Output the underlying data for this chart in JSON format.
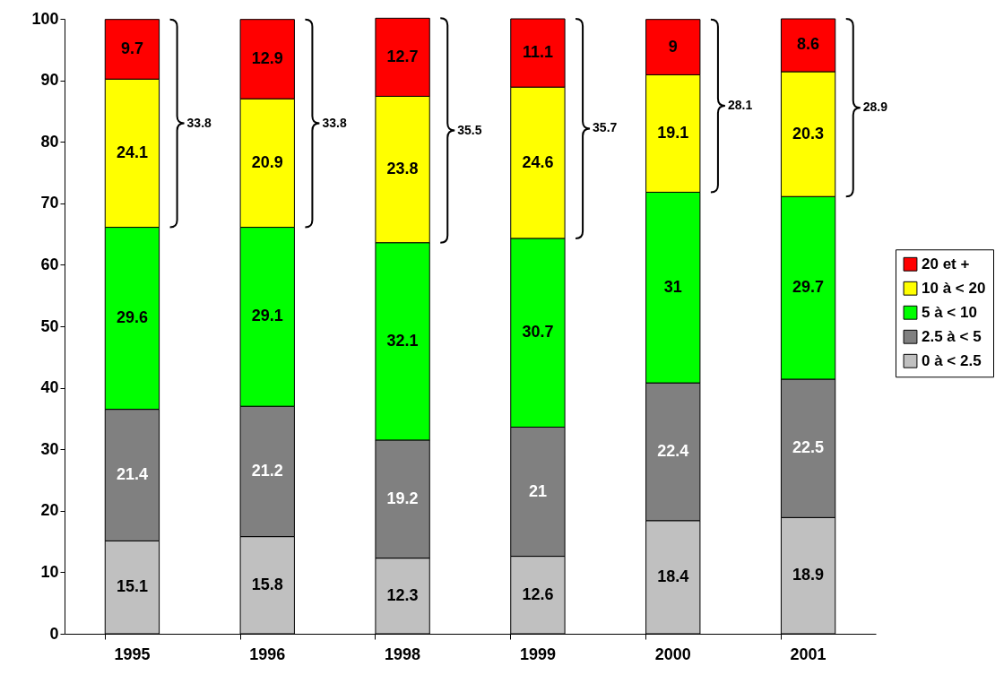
{
  "chart_data": {
    "type": "bar",
    "stacked": true,
    "categories": [
      "1995",
      "1996",
      "1998",
      "1999",
      "2000",
      "2001"
    ],
    "series": [
      {
        "name": "0 à < 2.5",
        "color": "#c0c0c0",
        "values": [
          15.1,
          15.8,
          12.3,
          12.6,
          18.4,
          18.9
        ]
      },
      {
        "name": "2.5 à < 5",
        "color": "#808080",
        "values": [
          21.4,
          21.2,
          19.2,
          21,
          22.4,
          22.5
        ]
      },
      {
        "name": "5 à < 10",
        "color": "#00ff00",
        "values": [
          29.6,
          29.1,
          32.1,
          30.7,
          31,
          29.7
        ]
      },
      {
        "name": "10 à < 20",
        "color": "#ffff00",
        "values": [
          24.1,
          20.9,
          23.8,
          24.6,
          19.1,
          20.3
        ]
      },
      {
        "name": "20 et +",
        "color": "#ff0000",
        "values": [
          9.7,
          12.9,
          12.7,
          11.1,
          9,
          8.6
        ]
      }
    ],
    "ylim": [
      0,
      100
    ],
    "yticks": [
      0,
      10,
      20,
      30,
      40,
      50,
      60,
      70,
      80,
      90,
      100
    ],
    "grid": false,
    "legend": "right",
    "data_labels": true,
    "annotations": [
      "33.8",
      "33.8",
      "35.5",
      "35.7",
      "28.1",
      "28.9"
    ]
  }
}
